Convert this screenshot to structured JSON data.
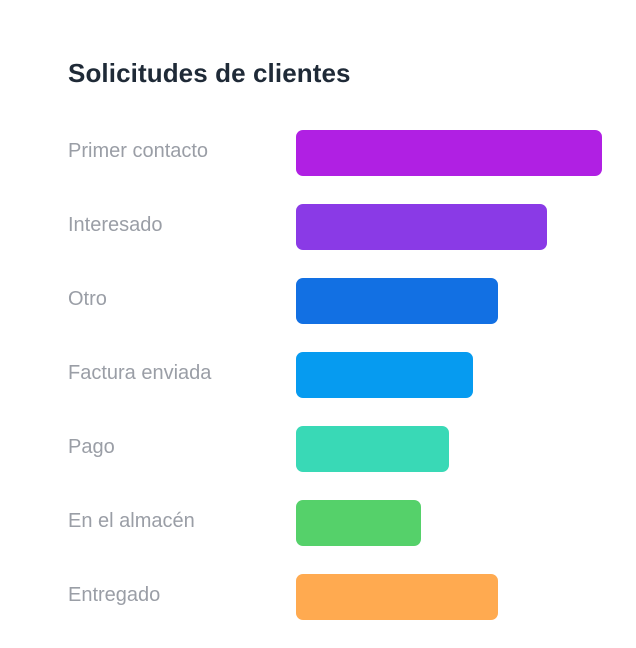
{
  "chart_data": {
    "type": "bar",
    "orientation": "horizontal",
    "title": "Solicitudes de clientes",
    "categories": [
      "Primer contacto",
      "Interesado",
      "Otro",
      "Factura enviada",
      "Pago",
      "En el almacén",
      "Entregado"
    ],
    "values": [
      100,
      82,
      66,
      58,
      50,
      41,
      66
    ],
    "colors": [
      "#b020e3",
      "#8a3ae6",
      "#1270e3",
      "#069bf0",
      "#39d9b6",
      "#55d16a",
      "#ffaa50"
    ],
    "xlim": [
      0,
      100
    ],
    "grid": false,
    "legend": "none"
  }
}
